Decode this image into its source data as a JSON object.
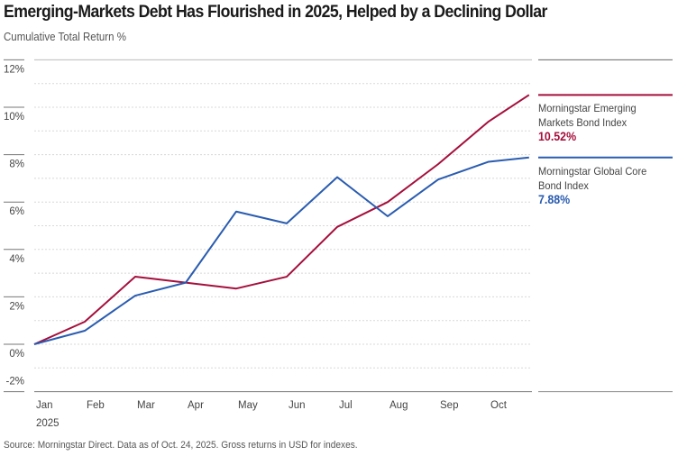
{
  "chart_data": {
    "type": "line",
    "title": "Emerging-Markets Debt Has Flourished in 2025, Helped by a Declining Dollar",
    "ylabel": "Cumulative Total Return %",
    "xlabel": "",
    "year_label": "2025",
    "categories": [
      "Jan",
      "Feb",
      "Mar",
      "Apr",
      "May",
      "Jun",
      "Jul",
      "Aug",
      "Sep",
      "Oct"
    ],
    "x": [
      0,
      1,
      2,
      3,
      4,
      5,
      6,
      7,
      8,
      9,
      9.8
    ],
    "ylim": [
      -2,
      12
    ],
    "yticks": [
      12,
      10,
      8,
      6,
      4,
      2,
      0,
      -2
    ],
    "ytick_labels": [
      "12%",
      "10%",
      "8%",
      "6%",
      "4%",
      "2%",
      "0%",
      "-2%"
    ],
    "grid": true,
    "series": [
      {
        "name": "Morningstar Emerging Markets Bond Index",
        "color": "#a50f3c",
        "final_label": "10.52%",
        "values": [
          0,
          0.95,
          2.85,
          2.6,
          2.35,
          2.85,
          4.95,
          6.0,
          7.6,
          9.4,
          10.52
        ]
      },
      {
        "name": "Morningstar Global Core Bond Index",
        "color": "#2a5cb0",
        "final_label": "7.88%",
        "values": [
          0,
          0.57,
          2.05,
          2.6,
          5.6,
          5.1,
          7.05,
          5.4,
          6.95,
          7.7,
          7.88
        ]
      }
    ],
    "legend_placement": "right",
    "source": "Source: Morningstar Direct. Data as of Oct. 24, 2025. Gross returns in USD for indexes."
  }
}
